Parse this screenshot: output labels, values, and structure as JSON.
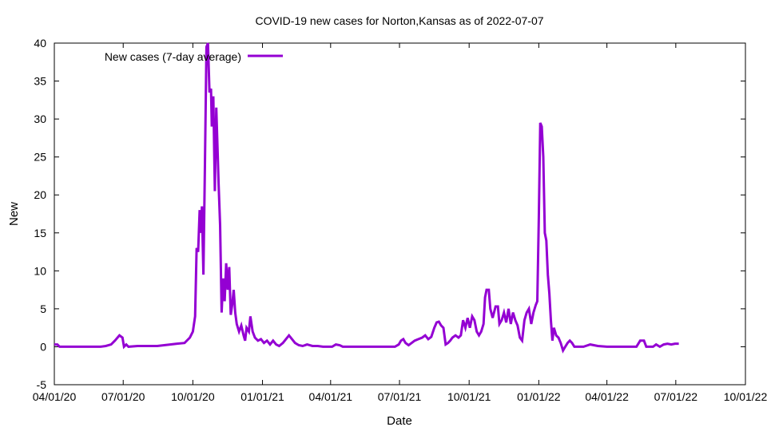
{
  "chart_data": {
    "type": "line",
    "title": "COVID-19 new cases for Norton,Kansas as of 2022-07-07",
    "xlabel": "Date",
    "ylabel": "New",
    "xlim": [
      "2020-04-01",
      "2022-10-01"
    ],
    "ylim": [
      -5,
      40
    ],
    "x_ticks": [
      {
        "date": "2020-04-01",
        "label": "04/01/20"
      },
      {
        "date": "2020-07-01",
        "label": "07/01/20"
      },
      {
        "date": "2020-10-01",
        "label": "10/01/20"
      },
      {
        "date": "2021-01-01",
        "label": "01/01/21"
      },
      {
        "date": "2021-04-01",
        "label": "04/01/21"
      },
      {
        "date": "2021-07-01",
        "label": "07/01/21"
      },
      {
        "date": "2021-10-01",
        "label": "10/01/21"
      },
      {
        "date": "2022-01-01",
        "label": "01/01/22"
      },
      {
        "date": "2022-04-01",
        "label": "04/01/22"
      },
      {
        "date": "2022-07-01",
        "label": "07/01/22"
      },
      {
        "date": "2022-10-01",
        "label": "10/01/22"
      }
    ],
    "y_ticks": [
      -5,
      0,
      5,
      10,
      15,
      20,
      25,
      30,
      35,
      40
    ],
    "grid": false,
    "legend_position": "top-left",
    "series": [
      {
        "name": "New cases (7-day average)",
        "color": "#9400d3",
        "points": [
          [
            "2020-04-01",
            0.3
          ],
          [
            "2020-04-05",
            0.3
          ],
          [
            "2020-04-08",
            0
          ],
          [
            "2020-05-01",
            0
          ],
          [
            "2020-06-01",
            0
          ],
          [
            "2020-06-08",
            0.1
          ],
          [
            "2020-06-15",
            0.3
          ],
          [
            "2020-06-20",
            0.8
          ],
          [
            "2020-06-26",
            1.5
          ],
          [
            "2020-06-30",
            1.2
          ],
          [
            "2020-07-02",
            0
          ],
          [
            "2020-07-05",
            0.3
          ],
          [
            "2020-07-08",
            0
          ],
          [
            "2020-07-20",
            0.1
          ],
          [
            "2020-08-05",
            0.1
          ],
          [
            "2020-08-15",
            0.1
          ],
          [
            "2020-09-01",
            0.3
          ],
          [
            "2020-09-10",
            0.4
          ],
          [
            "2020-09-20",
            0.5
          ],
          [
            "2020-09-27",
            1.2
          ],
          [
            "2020-10-01",
            2.0
          ],
          [
            "2020-10-04",
            4.0
          ],
          [
            "2020-10-06",
            13.0
          ],
          [
            "2020-10-08",
            12.5
          ],
          [
            "2020-10-10",
            18.0
          ],
          [
            "2020-10-12",
            15.0
          ],
          [
            "2020-10-13",
            18.5
          ],
          [
            "2020-10-15",
            9.5
          ],
          [
            "2020-10-17",
            24.0
          ],
          [
            "2020-10-19",
            39.5
          ],
          [
            "2020-10-21",
            40.0
          ],
          [
            "2020-10-23",
            33.5
          ],
          [
            "2020-10-25",
            34.0
          ],
          [
            "2020-10-26",
            29.0
          ],
          [
            "2020-10-28",
            33.0
          ],
          [
            "2020-10-30",
            20.5
          ],
          [
            "2020-11-01",
            31.5
          ],
          [
            "2020-11-03",
            25.0
          ],
          [
            "2020-11-04",
            21.5
          ],
          [
            "2020-11-06",
            16.0
          ],
          [
            "2020-11-08",
            4.5
          ],
          [
            "2020-11-10",
            9.0
          ],
          [
            "2020-11-12",
            6.0
          ],
          [
            "2020-11-14",
            11.0
          ],
          [
            "2020-11-16",
            7.5
          ],
          [
            "2020-11-18",
            10.5
          ],
          [
            "2020-11-20",
            4.2
          ],
          [
            "2020-11-22",
            5.5
          ],
          [
            "2020-11-24",
            7.5
          ],
          [
            "2020-11-26",
            4.5
          ],
          [
            "2020-11-28",
            3.0
          ],
          [
            "2020-12-01",
            2.0
          ],
          [
            "2020-12-04",
            2.8
          ],
          [
            "2020-12-07",
            1.5
          ],
          [
            "2020-12-09",
            0.8
          ],
          [
            "2020-12-11",
            2.5
          ],
          [
            "2020-12-14",
            2.0
          ],
          [
            "2020-12-16",
            4.0
          ],
          [
            "2020-12-19",
            2.0
          ],
          [
            "2020-12-22",
            1.2
          ],
          [
            "2020-12-26",
            0.8
          ],
          [
            "2020-12-30",
            1.0
          ],
          [
            "2021-01-03",
            0.5
          ],
          [
            "2021-01-07",
            0.8
          ],
          [
            "2021-01-11",
            0.3
          ],
          [
            "2021-01-15",
            0.8
          ],
          [
            "2021-01-19",
            0.3
          ],
          [
            "2021-01-23",
            0.1
          ],
          [
            "2021-01-28",
            0.5
          ],
          [
            "2021-02-01",
            1.0
          ],
          [
            "2021-02-05",
            1.5
          ],
          [
            "2021-02-09",
            1.0
          ],
          [
            "2021-02-13",
            0.5
          ],
          [
            "2021-02-18",
            0.2
          ],
          [
            "2021-02-23",
            0.1
          ],
          [
            "2021-03-01",
            0.3
          ],
          [
            "2021-03-08",
            0.1
          ],
          [
            "2021-03-15",
            0.1
          ],
          [
            "2021-03-22",
            0
          ],
          [
            "2021-03-29",
            0
          ],
          [
            "2021-04-03",
            0
          ],
          [
            "2021-04-08",
            0.3
          ],
          [
            "2021-04-13",
            0.2
          ],
          [
            "2021-04-17",
            0
          ],
          [
            "2021-05-01",
            0
          ],
          [
            "2021-06-01",
            0
          ],
          [
            "2021-06-25",
            0
          ],
          [
            "2021-06-30",
            0.3
          ],
          [
            "2021-07-03",
            0.8
          ],
          [
            "2021-07-06",
            1.0
          ],
          [
            "2021-07-09",
            0.5
          ],
          [
            "2021-07-13",
            0.2
          ],
          [
            "2021-07-17",
            0.5
          ],
          [
            "2021-07-21",
            0.8
          ],
          [
            "2021-07-26",
            1.0
          ],
          [
            "2021-07-31",
            1.2
          ],
          [
            "2021-08-04",
            1.5
          ],
          [
            "2021-08-08",
            1.0
          ],
          [
            "2021-08-12",
            1.3
          ],
          [
            "2021-08-16",
            2.5
          ],
          [
            "2021-08-19",
            3.2
          ],
          [
            "2021-08-22",
            3.3
          ],
          [
            "2021-08-25",
            2.8
          ],
          [
            "2021-08-28",
            2.5
          ],
          [
            "2021-08-31",
            0.3
          ],
          [
            "2021-09-03",
            0.5
          ],
          [
            "2021-09-06",
            0.8
          ],
          [
            "2021-09-09",
            1.2
          ],
          [
            "2021-09-13",
            1.5
          ],
          [
            "2021-09-17",
            1.2
          ],
          [
            "2021-09-20",
            1.5
          ],
          [
            "2021-09-23",
            3.5
          ],
          [
            "2021-09-26",
            2.5
          ],
          [
            "2021-09-29",
            3.8
          ],
          [
            "2021-10-02",
            2.5
          ],
          [
            "2021-10-05",
            4.0
          ],
          [
            "2021-10-08",
            3.5
          ],
          [
            "2021-10-11",
            2.0
          ],
          [
            "2021-10-14",
            1.5
          ],
          [
            "2021-10-17",
            2.0
          ],
          [
            "2021-10-20",
            3.0
          ],
          [
            "2021-10-22",
            6.5
          ],
          [
            "2021-10-24",
            7.5
          ],
          [
            "2021-10-27",
            7.5
          ],
          [
            "2021-10-29",
            5.0
          ],
          [
            "2021-11-01",
            3.8
          ],
          [
            "2021-11-05",
            5.3
          ],
          [
            "2021-11-08",
            5.3
          ],
          [
            "2021-11-10",
            3.0
          ],
          [
            "2021-11-13",
            3.5
          ],
          [
            "2021-11-16",
            4.5
          ],
          [
            "2021-11-19",
            3.2
          ],
          [
            "2021-11-22",
            5.0
          ],
          [
            "2021-11-25",
            3.0
          ],
          [
            "2021-11-28",
            4.5
          ],
          [
            "2021-12-01",
            3.5
          ],
          [
            "2021-12-04",
            2.8
          ],
          [
            "2021-12-07",
            1.2
          ],
          [
            "2021-12-10",
            0.8
          ],
          [
            "2021-12-13",
            3.5
          ],
          [
            "2021-12-16",
            4.5
          ],
          [
            "2021-12-19",
            5.0
          ],
          [
            "2021-12-22",
            3.0
          ],
          [
            "2021-12-25",
            4.5
          ],
          [
            "2021-12-28",
            5.5
          ],
          [
            "2021-12-30",
            6.0
          ],
          [
            "2022-01-01",
            17.0
          ],
          [
            "2022-01-03",
            29.5
          ],
          [
            "2022-01-05",
            29.0
          ],
          [
            "2022-01-07",
            25.0
          ],
          [
            "2022-01-09",
            15.0
          ],
          [
            "2022-01-11",
            14.0
          ],
          [
            "2022-01-13",
            9.5
          ],
          [
            "2022-01-15",
            7.0
          ],
          [
            "2022-01-17",
            3.5
          ],
          [
            "2022-01-19",
            0.8
          ],
          [
            "2022-01-21",
            2.5
          ],
          [
            "2022-01-24",
            1.5
          ],
          [
            "2022-01-27",
            1.2
          ],
          [
            "2022-01-30",
            0.5
          ],
          [
            "2022-02-02",
            -0.5
          ],
          [
            "2022-02-05",
            0
          ],
          [
            "2022-02-08",
            0.5
          ],
          [
            "2022-02-11",
            0.8
          ],
          [
            "2022-02-14",
            0.5
          ],
          [
            "2022-02-17",
            0
          ],
          [
            "2022-02-22",
            0
          ],
          [
            "2022-03-01",
            0
          ],
          [
            "2022-03-10",
            0.3
          ],
          [
            "2022-03-20",
            0.1
          ],
          [
            "2022-04-01",
            0
          ],
          [
            "2022-04-15",
            0
          ],
          [
            "2022-05-01",
            0
          ],
          [
            "2022-05-10",
            0
          ],
          [
            "2022-05-15",
            0.8
          ],
          [
            "2022-05-20",
            0.8
          ],
          [
            "2022-05-23",
            0
          ],
          [
            "2022-06-01",
            0
          ],
          [
            "2022-06-05",
            0.3
          ],
          [
            "2022-06-10",
            0
          ],
          [
            "2022-06-15",
            0.3
          ],
          [
            "2022-06-20",
            0.4
          ],
          [
            "2022-06-25",
            0.3
          ],
          [
            "2022-06-30",
            0.4
          ],
          [
            "2022-07-05",
            0.4
          ]
        ]
      }
    ]
  }
}
